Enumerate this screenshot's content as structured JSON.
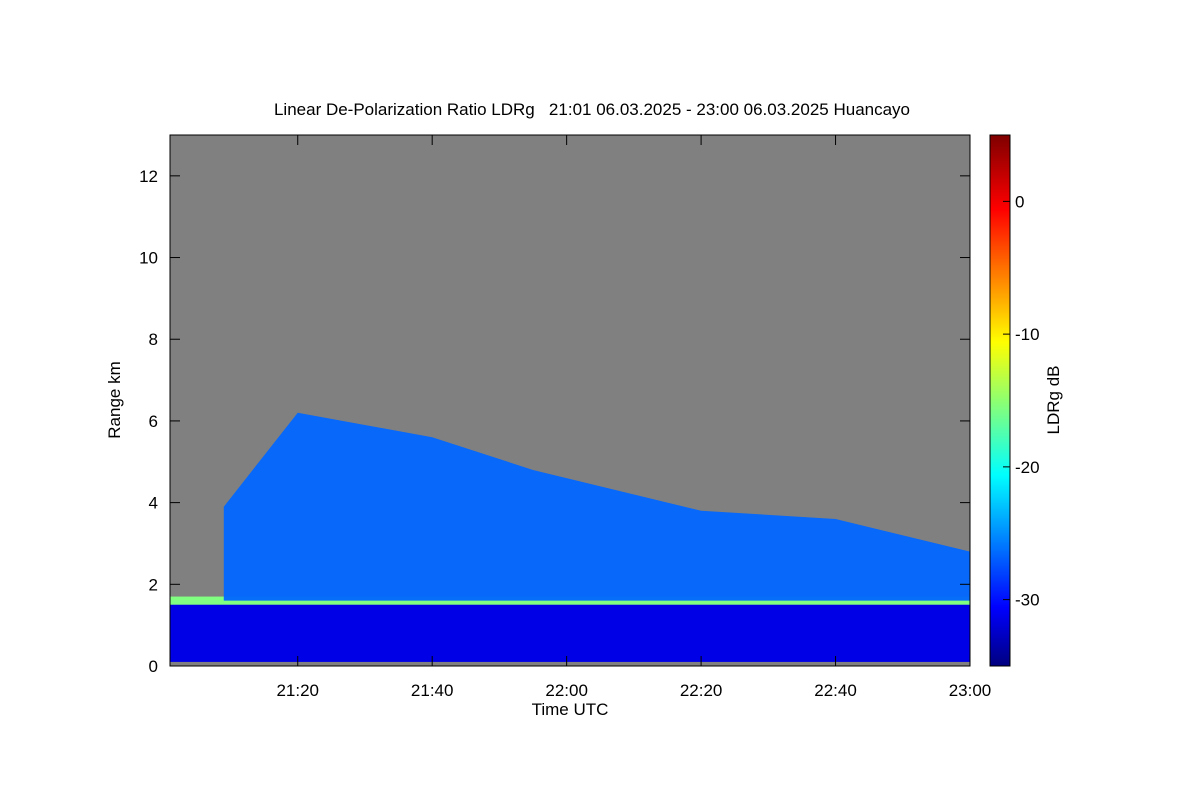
{
  "chart_data": {
    "type": "heatmap",
    "title": "Linear De-Polarization Ratio LDRg   21:01 06.03.2025 - 23:00 06.03.2025 Huancayo",
    "xlabel": "Time UTC",
    "ylabel": "Range km",
    "xlim": [
      "21:01",
      "23:00"
    ],
    "ylim": [
      0,
      13
    ],
    "x_ticks": [
      "21:20",
      "21:40",
      "22:00",
      "22:20",
      "22:40",
      "23:00"
    ],
    "y_ticks": [
      0,
      2,
      4,
      6,
      8,
      10,
      12
    ],
    "colorbar": {
      "label": "LDRg dB",
      "range": [
        -35,
        5
      ],
      "ticks": [
        0,
        -10,
        -20,
        -30
      ],
      "colormap": "jet"
    },
    "no_data_color": "#808080",
    "features": [
      {
        "layer": "aerosol/cloud layer near top of boundary layer",
        "time_start": "21:01",
        "time_end": "23:00",
        "height_km": [
          1.4,
          1.7
        ],
        "ldr_db": -15
      },
      {
        "layer": "main signal region below cloud",
        "time_start": "21:01",
        "time_end": "23:00",
        "height_km": [
          0.1,
          1.5
        ],
        "ldr_db": -31
      },
      {
        "layer": "cirrus/ice layer, descending",
        "time_start": "21:09",
        "time_end": "23:00",
        "top_height_km": [
          3.9,
          6.2,
          5.6,
          4.8,
          3.8,
          3.6,
          2.8
        ],
        "top_times": [
          "21:09",
          "21:20",
          "21:40",
          "21:55",
          "22:20",
          "22:40",
          "23:00"
        ],
        "ldr_db": -26
      }
    ]
  }
}
